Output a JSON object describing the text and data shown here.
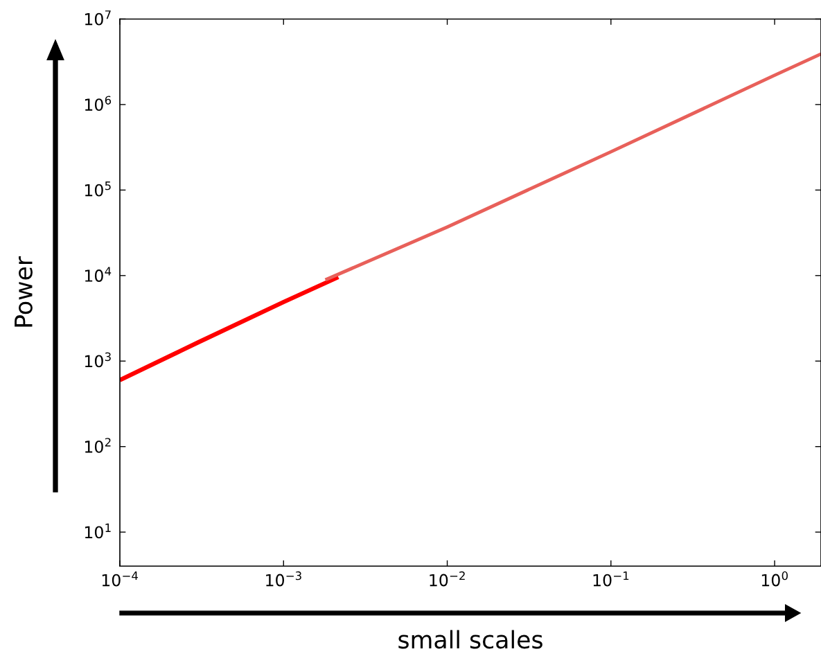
{
  "chart_data": {
    "type": "line",
    "xlabel": "small scales",
    "ylabel": "Power",
    "log": "xy",
    "series": [
      {
        "color": "#ff0000",
        "x": [
          0.0001,
          0.0003,
          0.001,
          0.00216
        ],
        "values": [
          600,
          1650,
          4900,
          9600
        ]
      },
      {
        "color": "#e8605a",
        "x": [
          0.0018,
          0.01,
          0.1,
          1,
          1.92
        ],
        "values": [
          8900,
          37000,
          280000,
          2200000,
          3900000
        ]
      }
    ],
    "xlim": [
      0.0001,
      1.92
    ],
    "ylim": [
      4,
      10000000
    ],
    "xticks": [
      {
        "value": 0.0001,
        "label": "10$^{−4}$"
      },
      {
        "value": 0.001,
        "label": "10$^{−3}$"
      },
      {
        "value": 0.01,
        "label": "10$^{−2}$"
      },
      {
        "value": 0.1,
        "label": "10$^{−1}$"
      },
      {
        "value": 1,
        "label": "10$^{0}$"
      }
    ],
    "yticks": [
      {
        "value": 10,
        "label": "10$^{1}$"
      },
      {
        "value": 100,
        "label": "10$^{2}$"
      },
      {
        "value": 1000,
        "label": "10$^{3}$"
      },
      {
        "value": 10000,
        "label": "10$^{4}$"
      },
      {
        "value": 100000,
        "label": "10$^{5}$"
      },
      {
        "value": 1000000,
        "label": "10$^{6}$"
      },
      {
        "value": 10000000,
        "label": "10$^{7}$"
      }
    ],
    "grid": false,
    "legend": false
  }
}
